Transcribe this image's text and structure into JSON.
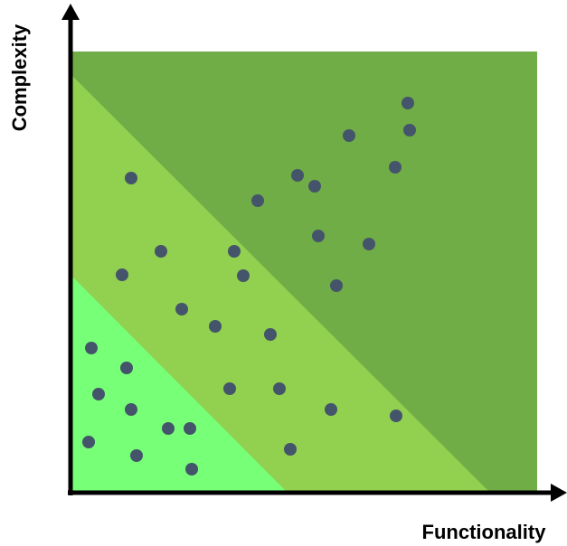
{
  "chart_data": {
    "type": "scatter",
    "xlabel": "Functionality",
    "ylabel": "Complexity",
    "grid": false,
    "legend": "none",
    "xlim": [
      0,
      516
    ],
    "ylim": [
      0,
      488
    ],
    "colors": {
      "zone_low": "#77ff77",
      "zone_mid": "#92d050",
      "zone_high": "#70ad47",
      "points": "#44546a",
      "axes": "#000000"
    },
    "points": [
      {
        "x": 373,
        "y": 431
      },
      {
        "x": 375,
        "y": 401
      },
      {
        "x": 308,
        "y": 395
      },
      {
        "x": 359,
        "y": 360
      },
      {
        "x": 251,
        "y": 351
      },
      {
        "x": 270,
        "y": 339
      },
      {
        "x": 67,
        "y": 348
      },
      {
        "x": 207,
        "y": 323
      },
      {
        "x": 274,
        "y": 284
      },
      {
        "x": 330,
        "y": 275
      },
      {
        "x": 100,
        "y": 267
      },
      {
        "x": 181,
        "y": 267
      },
      {
        "x": 57,
        "y": 241
      },
      {
        "x": 191,
        "y": 240
      },
      {
        "x": 294,
        "y": 229
      },
      {
        "x": 123,
        "y": 203
      },
      {
        "x": 160,
        "y": 184
      },
      {
        "x": 221,
        "y": 175
      },
      {
        "x": 23,
        "y": 160
      },
      {
        "x": 62,
        "y": 138
      },
      {
        "x": 31,
        "y": 109
      },
      {
        "x": 176,
        "y": 115
      },
      {
        "x": 231,
        "y": 115
      },
      {
        "x": 67,
        "y": 92
      },
      {
        "x": 288,
        "y": 92
      },
      {
        "x": 360,
        "y": 85
      },
      {
        "x": 108,
        "y": 71
      },
      {
        "x": 132,
        "y": 71
      },
      {
        "x": 20,
        "y": 56
      },
      {
        "x": 243,
        "y": 48
      },
      {
        "x": 73,
        "y": 41
      },
      {
        "x": 134,
        "y": 26
      }
    ]
  }
}
